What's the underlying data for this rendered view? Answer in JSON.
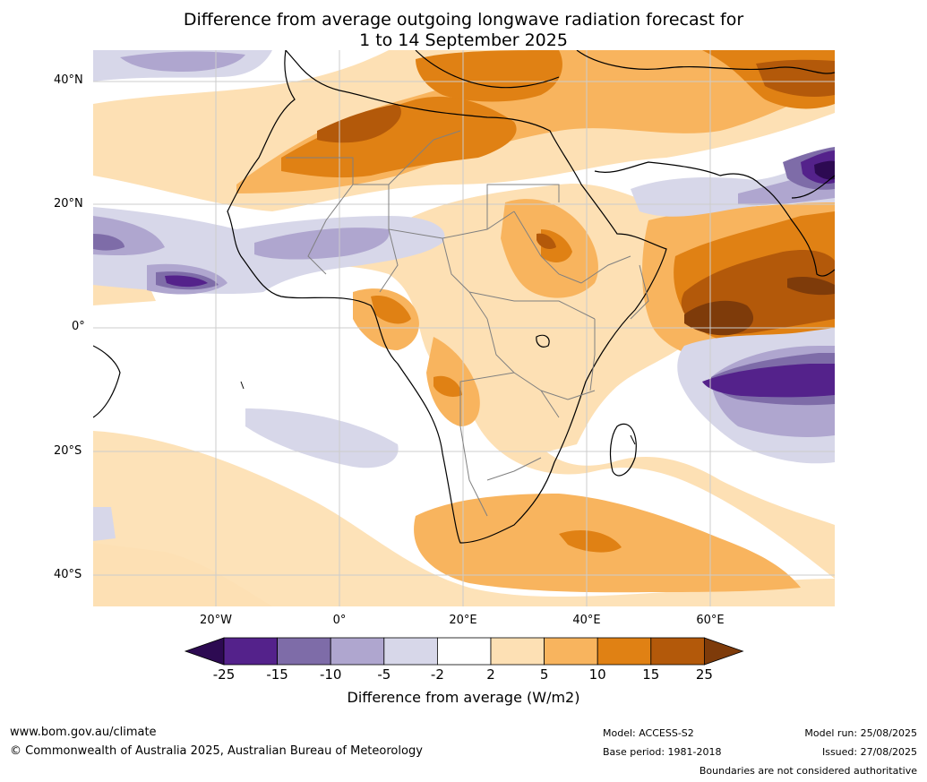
{
  "title": {
    "line1": "Difference from average outgoing longwave radiation forecast for",
    "line2": "1 to 14 September 2025"
  },
  "map": {
    "region": "Africa",
    "lat_ticks": [
      "40°N",
      "20°N",
      "0°",
      "20°S",
      "40°S"
    ],
    "lon_ticks": [
      "20°W",
      "0°",
      "20°E",
      "40°E",
      "60°E"
    ],
    "country_border_color": "#808080",
    "coast_color": "#000000",
    "gridline_color": "#cccccc"
  },
  "legend": {
    "title": "Difference from average (W/m2)",
    "labels": [
      "-25",
      "-15",
      "-10",
      "-5",
      "-2",
      "2",
      "5",
      "10",
      "15",
      "25"
    ],
    "colors": [
      "#2d0a52",
      "#54228b",
      "#7e6ca8",
      "#afa6cf",
      "#d7d7e9",
      "#ffffff",
      "#fde0b4",
      "#f8b45e",
      "#e08114",
      "#b3590a",
      "#7e3b0a"
    ]
  },
  "footer": {
    "website": "www.bom.gov.au/climate",
    "copyright": "© Commonwealth of Australia 2025, Australian Bureau of Meteorology",
    "model": "Model: ACCESS-S2",
    "base_period": "Base period: 1981-2018",
    "model_run": "Model run: 25/08/2025",
    "issued": "Issued: 27/08/2025",
    "disclaimer": "Boundaries are not considered authoritative"
  }
}
